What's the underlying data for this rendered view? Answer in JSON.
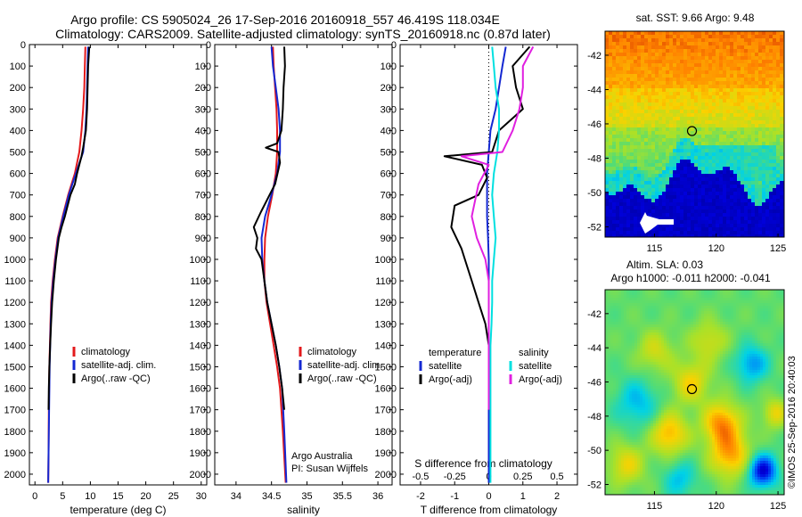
{
  "header": {
    "line1": "Argo profile: CS 5905024_26 17-Sep-2016 20160918_557 46.419S 118.034E",
    "line2": "Climatology: CARS2009. Satellite-adjusted climatology: synTS_20160918.nc (0.87d later)"
  },
  "credit": "©IMOS 25-Sep-2016 20:40:03",
  "chart_data": [
    {
      "id": "temperature",
      "type": "line",
      "xlabel": "temperature (deg C)",
      "xlim": [
        -1,
        31
      ],
      "ylim": [
        0,
        2050
      ],
      "y_inverted": true,
      "xticks": [
        0,
        5,
        10,
        15,
        20,
        25,
        30
      ],
      "yticks": [
        0,
        100,
        200,
        300,
        400,
        500,
        600,
        700,
        800,
        900,
        1000,
        1100,
        1200,
        1300,
        1400,
        1500,
        1600,
        1700,
        1800,
        1900,
        2000
      ],
      "legend": {
        "placement": "lower-middle",
        "entries": [
          "climatology",
          "satellite-adj. clim.",
          "Argo(..raw -QC)"
        ]
      },
      "series": [
        {
          "name": "climatology",
          "color": "#e31a1c",
          "x": [
            9.1,
            9.0,
            8.9,
            8.7,
            8.4,
            8.0,
            7.2,
            6.0,
            5.0,
            4.1,
            3.6,
            3.2,
            2.9,
            2.8,
            2.7,
            2.6,
            2.5,
            2.45,
            2.4
          ],
          "y": [
            10,
            100,
            200,
            300,
            400,
            500,
            600,
            700,
            800,
            900,
            1000,
            1100,
            1200,
            1300,
            1400,
            1500,
            1700,
            1900,
            2040
          ]
        },
        {
          "name": "satellite-adj. clim.",
          "color": "#1428d2",
          "x": [
            9.6,
            9.5,
            9.4,
            9.3,
            9.1,
            8.7,
            7.4,
            6.1,
            5.1,
            4.2,
            3.7,
            3.3,
            3.0,
            2.85,
            2.75,
            2.65,
            2.55,
            2.45,
            2.4
          ],
          "y": [
            10,
            100,
            200,
            300,
            400,
            500,
            600,
            700,
            800,
            900,
            1000,
            1100,
            1200,
            1300,
            1400,
            1500,
            1700,
            1900,
            2040
          ]
        },
        {
          "name": "Argo(..raw -QC)",
          "color": "#000000",
          "x": [
            9.8,
            9.6,
            9.5,
            9.4,
            9.2,
            8.7,
            8.4,
            8.0,
            7.6,
            7.2,
            6.4,
            5.4,
            4.8,
            4.3,
            3.8,
            3.4,
            3.1,
            2.9,
            2.75,
            2.6,
            2.5,
            2.45
          ],
          "y": [
            10,
            100,
            200,
            300,
            400,
            480,
            520,
            560,
            600,
            650,
            700,
            800,
            850,
            900,
            1000,
            1100,
            1200,
            1300,
            1400,
            1500,
            1600,
            1700
          ]
        }
      ]
    },
    {
      "id": "salinity",
      "type": "line",
      "xlabel": "salinity",
      "xlim": [
        33.7,
        36.2
      ],
      "ylim": [
        0,
        2050
      ],
      "y_inverted": true,
      "xticks": [
        34,
        34.5,
        35,
        35.5,
        36
      ],
      "yticks": [
        0,
        100,
        200,
        300,
        400,
        500,
        600,
        700,
        800,
        900,
        1000,
        1100,
        1200,
        1300,
        1400,
        1500,
        1600,
        1700,
        1800,
        1900,
        2000
      ],
      "legend": {
        "placement": "lower-right",
        "entries": [
          "climatology",
          "satellite-adj. clim.",
          "Argo(..raw -QC)"
        ]
      },
      "annotation": [
        "Argo Australia",
        "PI: Susan Wijffels"
      ],
      "series": [
        {
          "name": "climatology",
          "color": "#e31a1c",
          "x": [
            34.52,
            34.53,
            34.55,
            34.57,
            34.58,
            34.58,
            34.56,
            34.51,
            34.45,
            34.41,
            34.4,
            34.4,
            34.43,
            34.48,
            34.53,
            34.58,
            34.62,
            34.66,
            34.7
          ],
          "y": [
            10,
            100,
            200,
            300,
            400,
            500,
            600,
            700,
            800,
            900,
            1000,
            1100,
            1200,
            1300,
            1400,
            1500,
            1600,
            1800,
            2040
          ]
        },
        {
          "name": "satellite-adj. clim.",
          "color": "#1428d2",
          "x": [
            34.5,
            34.52,
            34.56,
            34.6,
            34.62,
            34.62,
            34.58,
            34.5,
            34.41,
            34.36,
            34.37,
            34.4,
            34.44,
            34.5,
            34.56,
            34.61,
            34.65,
            34.68,
            34.71
          ],
          "y": [
            10,
            100,
            200,
            300,
            400,
            500,
            600,
            700,
            800,
            900,
            1000,
            1100,
            1200,
            1300,
            1400,
            1500,
            1600,
            1800,
            2040
          ]
        },
        {
          "name": "Argo(..raw -QC)",
          "color": "#000000",
          "x": [
            34.68,
            34.69,
            34.67,
            34.66,
            34.64,
            34.58,
            34.42,
            34.6,
            34.62,
            34.55,
            34.35,
            34.25,
            34.3,
            34.28,
            34.36,
            34.4,
            34.44,
            34.5,
            34.56,
            34.61,
            34.65,
            34.68
          ],
          "y": [
            10,
            100,
            200,
            300,
            400,
            460,
            480,
            500,
            550,
            650,
            780,
            850,
            900,
            950,
            1000,
            1100,
            1200,
            1300,
            1400,
            1500,
            1600,
            1700
          ]
        }
      ]
    },
    {
      "id": "differences",
      "type": "line",
      "xlabel": "T difference from climatology",
      "xlabel_top": "S difference from climatology",
      "xlim": [
        -2.6,
        2.6
      ],
      "ylim": [
        0,
        2050
      ],
      "y_inverted": true,
      "xticks": [
        -2,
        -1,
        0,
        1,
        2
      ],
      "xticks_s": [
        {
          "pos": -2,
          "label": "-0.5"
        },
        {
          "pos": -1,
          "label": "-0.25"
        },
        {
          "pos": 0,
          "label": "0"
        },
        {
          "pos": 1,
          "label": "0.25"
        },
        {
          "pos": 2,
          "label": "0.5"
        }
      ],
      "yticks": [
        0,
        100,
        200,
        300,
        400,
        500,
        600,
        700,
        800,
        900,
        1000,
        1100,
        1200,
        1300,
        1400,
        1500,
        1600,
        1700,
        1800,
        1900,
        2000
      ],
      "legend": {
        "placement": "lower-middle",
        "groups": [
          {
            "title": "temperature",
            "entries": [
              "satellite",
              "Argo(-adj)"
            ]
          },
          {
            "title": "salinity",
            "entries": [
              "satellite",
              "Argo(-adj)"
            ]
          }
        ]
      },
      "series": [
        {
          "name": "satellite",
          "group": "temperature",
          "color": "#1428d2",
          "x": [
            0.5,
            0.4,
            0.3,
            0.2,
            0.05,
            0.0,
            -0.05,
            -0.05,
            -0.05,
            -0.02,
            0.0,
            0.0,
            0.0,
            0.0,
            0.0,
            0.0,
            0.0,
            0.0,
            0.0
          ],
          "y": [
            10,
            100,
            200,
            300,
            400,
            500,
            600,
            700,
            800,
            900,
            1000,
            1100,
            1200,
            1300,
            1400,
            1500,
            1700,
            1900,
            2040
          ]
        },
        {
          "name": "Argo(-adj)",
          "group": "temperature",
          "color": "#000000",
          "x": [
            1.2,
            0.7,
            0.8,
            1.0,
            0.3,
            0.1,
            -1.3,
            -0.2,
            -0.05,
            -0.3,
            -1.0,
            -1.1,
            -0.8,
            -0.7,
            -0.5,
            -0.3,
            -0.1,
            0.0,
            0.0,
            0.0,
            0.0
          ],
          "y": [
            10,
            100,
            200,
            300,
            400,
            500,
            520,
            560,
            620,
            700,
            750,
            850,
            950,
            1000,
            1100,
            1200,
            1300,
            1400,
            1500,
            1600,
            1700
          ]
        },
        {
          "name": "satellite",
          "group": "salinity",
          "color": "#00e0e0",
          "x": [
            0.1,
            0.15,
            0.2,
            0.3,
            0.3,
            0.25,
            0.15,
            0.1,
            0.15,
            0.2,
            0.15,
            0.1,
            0.1,
            0.08,
            0.05,
            0.05,
            0.05,
            0.05,
            0.05
          ],
          "y": [
            10,
            100,
            200,
            300,
            400,
            500,
            600,
            700,
            800,
            900,
            1000,
            1100,
            1200,
            1300,
            1400,
            1500,
            1700,
            1900,
            2040
          ]
        },
        {
          "name": "Argo(-adj)",
          "group": "salinity",
          "color": "#e020e0",
          "x": [
            1.3,
            1.0,
            1.0,
            0.9,
            0.7,
            0.4,
            -0.8,
            0.0,
            -0.3,
            -0.5,
            -0.35,
            -0.1,
            0.0,
            0.0,
            0.0,
            0.0,
            0.0,
            0.0,
            0.0
          ],
          "y": [
            10,
            100,
            200,
            300,
            400,
            500,
            520,
            560,
            650,
            800,
            900,
            1000,
            1100,
            1200,
            1300,
            1400,
            1500,
            1600,
            1700
          ]
        }
      ]
    },
    {
      "id": "sst-map",
      "type": "heatmap",
      "title": "sat. SST: 9.66 Argo: 9.48",
      "xlim": [
        111,
        125.5
      ],
      "ylim": [
        -52.6,
        -40.6
      ],
      "xticks": [
        115,
        120,
        125
      ],
      "yticks": [
        -42,
        -44,
        -46,
        -48,
        -50,
        -52
      ],
      "marker": {
        "lon": 118.034,
        "lat": -46.419
      }
    },
    {
      "id": "sla-map",
      "type": "heatmap",
      "title": "Altim. SLA: 0.03",
      "subtitle": "Argo h1000: -0.011 h2000: -0.041",
      "xlim": [
        111,
        125.5
      ],
      "ylim": [
        -52.6,
        -40.6
      ],
      "xticks": [
        115,
        120,
        125
      ],
      "yticks": [
        -42,
        -44,
        -46,
        -48,
        -50,
        -52
      ],
      "marker": {
        "lon": 118.034,
        "lat": -46.419
      }
    }
  ]
}
